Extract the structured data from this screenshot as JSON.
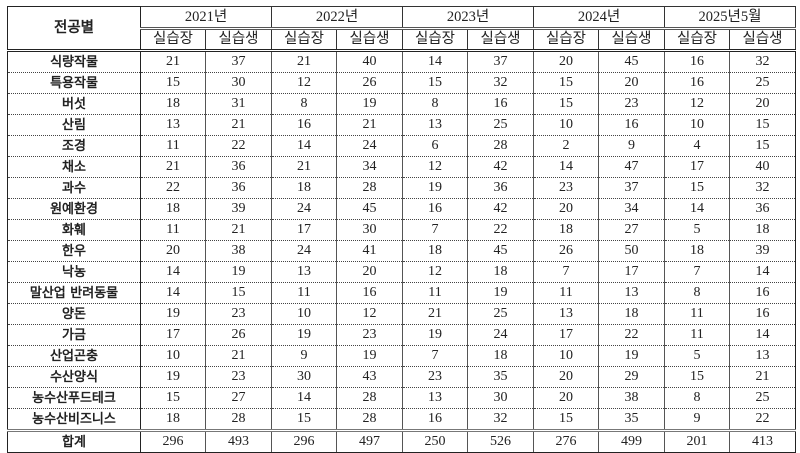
{
  "table": {
    "corner_label": "전공별",
    "years": [
      "2021년",
      "2022년",
      "2023년",
      "2024년",
      "2025년5월"
    ],
    "sub_headers": [
      "실습장",
      "실습생"
    ],
    "rows": [
      {
        "label": "식량작물",
        "values": [
          21,
          37,
          21,
          40,
          14,
          37,
          20,
          45,
          16,
          32
        ]
      },
      {
        "label": "특용작물",
        "values": [
          15,
          30,
          12,
          26,
          15,
          32,
          15,
          20,
          16,
          25
        ]
      },
      {
        "label": "버섯",
        "values": [
          18,
          31,
          8,
          19,
          8,
          16,
          15,
          23,
          12,
          20
        ]
      },
      {
        "label": "산림",
        "values": [
          13,
          21,
          16,
          21,
          13,
          25,
          10,
          16,
          10,
          15
        ]
      },
      {
        "label": "조경",
        "values": [
          11,
          22,
          14,
          24,
          6,
          28,
          2,
          9,
          4,
          15
        ]
      },
      {
        "label": "채소",
        "values": [
          21,
          36,
          21,
          34,
          12,
          42,
          14,
          47,
          17,
          40
        ]
      },
      {
        "label": "과수",
        "values": [
          22,
          36,
          18,
          28,
          19,
          36,
          23,
          37,
          15,
          32
        ]
      },
      {
        "label": "원예환경",
        "values": [
          18,
          39,
          24,
          45,
          16,
          42,
          20,
          34,
          14,
          36
        ]
      },
      {
        "label": "화훼",
        "values": [
          11,
          21,
          17,
          30,
          7,
          22,
          18,
          27,
          5,
          18
        ]
      },
      {
        "label": "한우",
        "values": [
          20,
          38,
          24,
          41,
          18,
          45,
          26,
          50,
          18,
          39
        ]
      },
      {
        "label": "낙농",
        "values": [
          14,
          19,
          13,
          20,
          12,
          18,
          7,
          17,
          7,
          14
        ]
      },
      {
        "label": "말산업 반려동물",
        "values": [
          14,
          15,
          11,
          16,
          11,
          19,
          11,
          13,
          8,
          16
        ]
      },
      {
        "label": "양돈",
        "values": [
          19,
          23,
          10,
          12,
          21,
          25,
          13,
          18,
          11,
          16
        ]
      },
      {
        "label": "가금",
        "values": [
          17,
          26,
          19,
          23,
          19,
          24,
          17,
          22,
          11,
          14
        ]
      },
      {
        "label": "산업곤충",
        "values": [
          10,
          21,
          9,
          19,
          7,
          18,
          10,
          19,
          5,
          13
        ]
      },
      {
        "label": "수산양식",
        "values": [
          19,
          23,
          30,
          43,
          23,
          35,
          20,
          29,
          15,
          21
        ]
      },
      {
        "label": "농수산푸드테크",
        "values": [
          15,
          27,
          14,
          28,
          13,
          30,
          20,
          38,
          8,
          25
        ]
      },
      {
        "label": "농수산비즈니스",
        "values": [
          18,
          28,
          15,
          28,
          16,
          32,
          15,
          35,
          9,
          22
        ]
      }
    ],
    "total": {
      "label": "합계",
      "values": [
        296,
        493,
        296,
        497,
        250,
        526,
        276,
        499,
        201,
        413
      ]
    }
  }
}
